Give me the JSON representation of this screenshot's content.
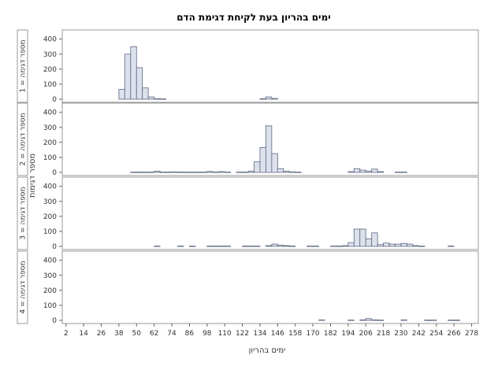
{
  "chart_data": {
    "type": "bar",
    "title": "ימים בהריון בעת לקיחת דגימת הדם",
    "xlabel": "ימים בהריון",
    "ylabel": "מספר דגימות",
    "xlim": [
      0,
      282
    ],
    "ylim": [
      0,
      430
    ],
    "bin_width": 4,
    "x_ticks": [
      2,
      14,
      26,
      38,
      50,
      62,
      74,
      86,
      98,
      110,
      122,
      134,
      146,
      158,
      170,
      182,
      194,
      206,
      218,
      230,
      242,
      254,
      266,
      278
    ],
    "y_ticks": [
      0,
      100,
      200,
      300,
      400
    ],
    "grid": false,
    "colors": {
      "bar_fill": "#dde1ec",
      "bar_stroke": "#5a6680",
      "frame": "#999999",
      "strip_fill": "#ffffff"
    },
    "panels": [
      {
        "label": "מספר דגימה = 1",
        "bins": [
          {
            "x": 38,
            "value": 65
          },
          {
            "x": 42,
            "value": 300
          },
          {
            "x": 46,
            "value": 350
          },
          {
            "x": 50,
            "value": 210
          },
          {
            "x": 54,
            "value": 75
          },
          {
            "x": 58,
            "value": 15
          },
          {
            "x": 62,
            "value": 3
          },
          {
            "x": 66,
            "value": 2
          },
          {
            "x": 134,
            "value": 3
          },
          {
            "x": 138,
            "value": 15
          },
          {
            "x": 142,
            "value": 5
          }
        ]
      },
      {
        "label": "מספר דגימה = 2",
        "bins": [
          {
            "x": 46,
            "value": 2
          },
          {
            "x": 50,
            "value": 2
          },
          {
            "x": 54,
            "value": 2
          },
          {
            "x": 58,
            "value": 2
          },
          {
            "x": 62,
            "value": 8
          },
          {
            "x": 66,
            "value": 2
          },
          {
            "x": 70,
            "value": 2
          },
          {
            "x": 74,
            "value": 3
          },
          {
            "x": 78,
            "value": 2
          },
          {
            "x": 82,
            "value": 2
          },
          {
            "x": 86,
            "value": 2
          },
          {
            "x": 90,
            "value": 2
          },
          {
            "x": 94,
            "value": 2
          },
          {
            "x": 98,
            "value": 6
          },
          {
            "x": 102,
            "value": 2
          },
          {
            "x": 106,
            "value": 5
          },
          {
            "x": 110,
            "value": 2
          },
          {
            "x": 118,
            "value": 2
          },
          {
            "x": 122,
            "value": 2
          },
          {
            "x": 126,
            "value": 8
          },
          {
            "x": 130,
            "value": 70
          },
          {
            "x": 134,
            "value": 165
          },
          {
            "x": 138,
            "value": 310
          },
          {
            "x": 142,
            "value": 125
          },
          {
            "x": 146,
            "value": 25
          },
          {
            "x": 150,
            "value": 8
          },
          {
            "x": 154,
            "value": 3
          },
          {
            "x": 158,
            "value": 2
          },
          {
            "x": 194,
            "value": 5
          },
          {
            "x": 198,
            "value": 25
          },
          {
            "x": 202,
            "value": 15
          },
          {
            "x": 206,
            "value": 8
          },
          {
            "x": 210,
            "value": 22
          },
          {
            "x": 214,
            "value": 5
          },
          {
            "x": 226,
            "value": 2
          },
          {
            "x": 230,
            "value": 2
          }
        ]
      },
      {
        "label": "מספר דגימה = 3",
        "bins": [
          {
            "x": 62,
            "value": 2
          },
          {
            "x": 78,
            "value": 2
          },
          {
            "x": 86,
            "value": 2
          },
          {
            "x": 98,
            "value": 2
          },
          {
            "x": 102,
            "value": 2
          },
          {
            "x": 106,
            "value": 2
          },
          {
            "x": 110,
            "value": 2
          },
          {
            "x": 122,
            "value": 2
          },
          {
            "x": 126,
            "value": 2
          },
          {
            "x": 130,
            "value": 2
          },
          {
            "x": 138,
            "value": 5
          },
          {
            "x": 142,
            "value": 15
          },
          {
            "x": 146,
            "value": 8
          },
          {
            "x": 150,
            "value": 5
          },
          {
            "x": 154,
            "value": 2
          },
          {
            "x": 166,
            "value": 2
          },
          {
            "x": 170,
            "value": 2
          },
          {
            "x": 182,
            "value": 2
          },
          {
            "x": 186,
            "value": 2
          },
          {
            "x": 190,
            "value": 5
          },
          {
            "x": 194,
            "value": 25
          },
          {
            "x": 198,
            "value": 115
          },
          {
            "x": 202,
            "value": 115
          },
          {
            "x": 206,
            "value": 50
          },
          {
            "x": 210,
            "value": 90
          },
          {
            "x": 214,
            "value": 12
          },
          {
            "x": 218,
            "value": 22
          },
          {
            "x": 222,
            "value": 15
          },
          {
            "x": 226,
            "value": 15
          },
          {
            "x": 230,
            "value": 20
          },
          {
            "x": 234,
            "value": 15
          },
          {
            "x": 238,
            "value": 5
          },
          {
            "x": 242,
            "value": 2
          },
          {
            "x": 262,
            "value": 2
          }
        ]
      },
      {
        "label": "מספר דגימה = 4",
        "bins": [
          {
            "x": 174,
            "value": 3
          },
          {
            "x": 194,
            "value": 2
          },
          {
            "x": 202,
            "value": 3
          },
          {
            "x": 206,
            "value": 12
          },
          {
            "x": 210,
            "value": 3
          },
          {
            "x": 214,
            "value": 2
          },
          {
            "x": 230,
            "value": 3
          },
          {
            "x": 246,
            "value": 2
          },
          {
            "x": 250,
            "value": 2
          },
          {
            "x": 262,
            "value": 2
          },
          {
            "x": 266,
            "value": 2
          }
        ]
      }
    ]
  }
}
